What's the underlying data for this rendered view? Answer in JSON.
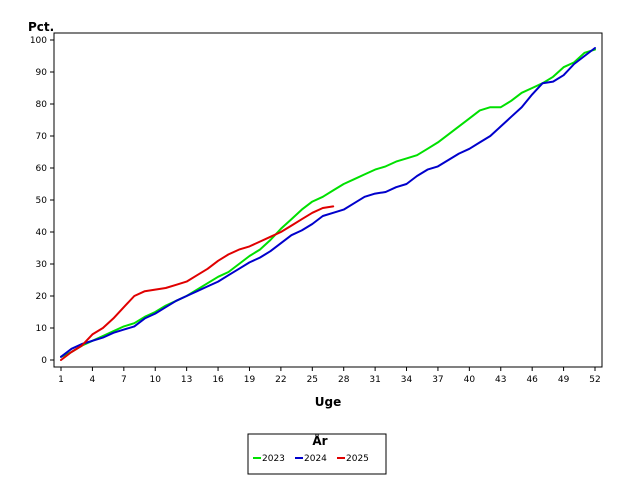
{
  "chart_data": {
    "type": "line",
    "ylabel": "Pct.",
    "xlabel": "Uge",
    "xlim": [
      1,
      52
    ],
    "ylim": [
      0,
      100
    ],
    "x_ticks": [
      1,
      4,
      7,
      10,
      13,
      16,
      19,
      22,
      25,
      28,
      31,
      34,
      37,
      40,
      43,
      46,
      49,
      52
    ],
    "y_ticks": [
      0,
      10,
      20,
      30,
      40,
      50,
      60,
      70,
      80,
      90,
      100
    ],
    "grid": false,
    "legend": {
      "title": "År",
      "placement": "bottom-center"
    },
    "series": [
      {
        "name": "2023",
        "color": "#00e000",
        "x": [
          1,
          2,
          3,
          4,
          5,
          6,
          7,
          8,
          9,
          10,
          11,
          12,
          13,
          14,
          15,
          16,
          17,
          18,
          19,
          20,
          21,
          22,
          23,
          24,
          25,
          26,
          27,
          28,
          29,
          30,
          31,
          32,
          33,
          34,
          35,
          36,
          37,
          38,
          39,
          40,
          41,
          42,
          43,
          44,
          45,
          46,
          47,
          48,
          49,
          50,
          51,
          52
        ],
        "y": [
          1,
          2.5,
          4.5,
          6,
          7.5,
          9,
          10.5,
          11.5,
          13.5,
          15,
          17,
          18.5,
          20,
          22,
          24,
          26,
          27.5,
          30,
          32.5,
          34.5,
          37.5,
          41,
          44,
          47,
          49.5,
          51,
          53,
          55,
          56.5,
          58,
          59.5,
          60.5,
          62,
          63,
          64,
          66,
          68,
          70.5,
          73,
          75.5,
          78,
          79,
          79,
          81,
          83.5,
          85,
          86.5,
          88.5,
          91.5,
          93,
          96,
          97
        ]
      },
      {
        "name": "2024",
        "color": "#0000cc",
        "x": [
          1,
          2,
          3,
          4,
          5,
          6,
          7,
          8,
          9,
          10,
          11,
          12,
          13,
          14,
          15,
          16,
          17,
          18,
          19,
          20,
          21,
          22,
          23,
          24,
          25,
          26,
          27,
          28,
          29,
          30,
          31,
          32,
          33,
          34,
          35,
          36,
          37,
          38,
          39,
          40,
          41,
          42,
          43,
          44,
          45,
          46,
          47,
          48,
          49,
          50,
          51,
          52
        ],
        "y": [
          1,
          3.5,
          5,
          6,
          7,
          8.5,
          9.5,
          10.5,
          13,
          14.5,
          16.5,
          18.5,
          20,
          21.5,
          23,
          24.5,
          26.5,
          28.5,
          30.5,
          32,
          34,
          36.5,
          39,
          40.5,
          42.5,
          45,
          46,
          47,
          49,
          51,
          52,
          52.5,
          54,
          55,
          57.5,
          59.5,
          60.5,
          62.5,
          64.5,
          66,
          68,
          70,
          73,
          76,
          79,
          83,
          86.5,
          87,
          89,
          92.5,
          95,
          97.5
        ]
      },
      {
        "name": "2025",
        "color": "#e00000",
        "x": [
          1,
          2,
          3,
          4,
          5,
          6,
          7,
          8,
          9,
          10,
          11,
          12,
          13,
          14,
          15,
          16,
          17,
          18,
          19,
          20,
          21,
          22,
          23,
          24,
          25,
          26,
          27
        ],
        "y": [
          0,
          2.5,
          4.5,
          8,
          10,
          13,
          16.5,
          20,
          21.5,
          22,
          22.5,
          23.5,
          24.5,
          26.5,
          28.5,
          31,
          33,
          34.5,
          35.5,
          37,
          38.5,
          40,
          42,
          44,
          46,
          47.5,
          48
        ]
      }
    ]
  }
}
